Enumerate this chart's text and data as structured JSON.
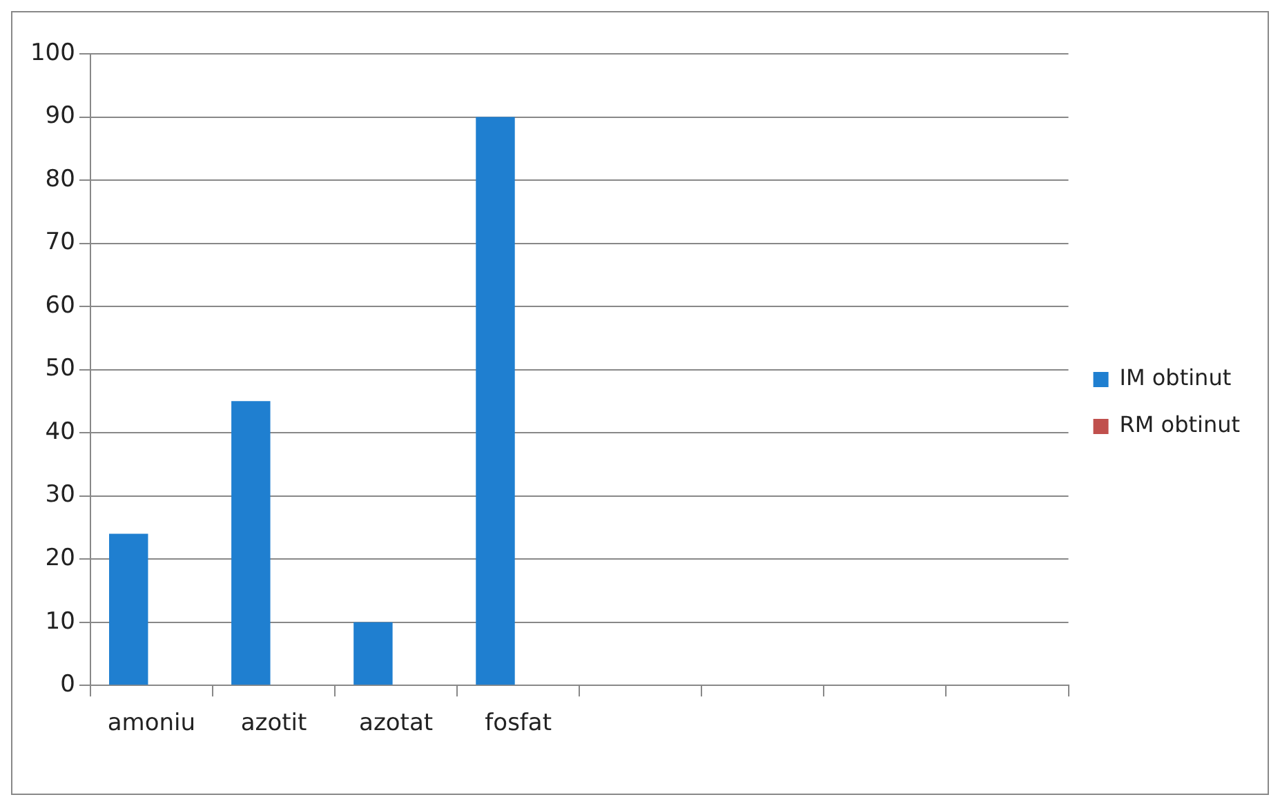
{
  "chart_data": {
    "type": "bar",
    "categories": [
      "amoniu",
      "azotit",
      "azotat",
      "fosfat",
      null,
      null,
      null,
      null
    ],
    "series": [
      {
        "name": "IM obtinut",
        "color": "#1f7fd0",
        "values": [
          24,
          45,
          10,
          90,
          null,
          null,
          null,
          null
        ]
      },
      {
        "name": "RM obtinut",
        "color": "#c0504d",
        "values": [
          null,
          null,
          null,
          null,
          null,
          null,
          null,
          null
        ]
      }
    ],
    "ylim": [
      0,
      100
    ],
    "yticks": [
      0,
      10,
      20,
      30,
      40,
      50,
      60,
      70,
      80,
      90,
      100
    ],
    "grid": "y",
    "legend": "right"
  }
}
